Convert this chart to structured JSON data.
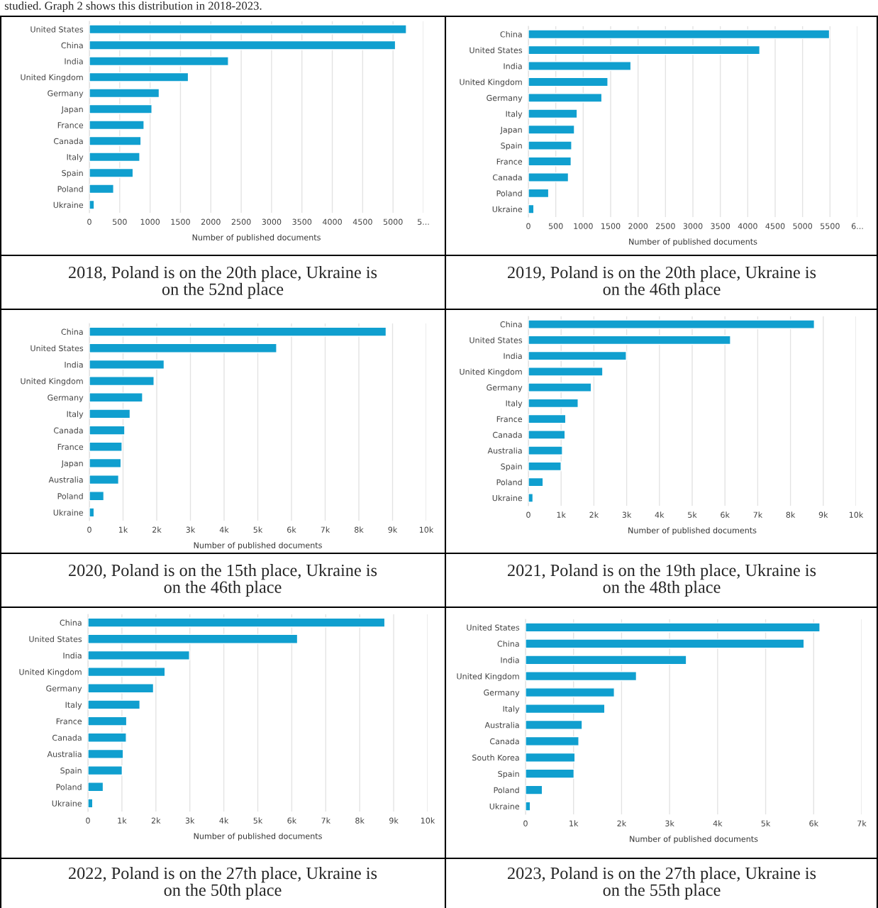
{
  "chart_data": [
    {
      "type": "bar",
      "orientation": "horizontal",
      "title": "studied. Graph 2 shows this distribution in 2018-2023.",
      "xlabel": "Number of published documents",
      "color": "#109fcf",
      "grid": "x",
      "categories": [
        "United States",
        "China",
        "India",
        "United Kingdom",
        "Germany",
        "Japan",
        "France",
        "Canada",
        "Italy",
        "Spain",
        "Poland",
        "Ukraine"
      ],
      "values": [
        5220,
        5040,
        2290,
        1630,
        1150,
        1030,
        900,
        850,
        830,
        720,
        400,
        80
      ],
      "xlim": [
        0,
        5500
      ],
      "xticks": [
        0,
        500,
        1000,
        1500,
        2000,
        2500,
        3000,
        3500,
        4000,
        4500,
        5000,
        {
          "value": 5500,
          "label": "5..."
        }
      ],
      "annotations": [
        "2018, Poland is on the 20th place, Ukraine is\non the 52nd place"
      ]
    },
    {
      "type": "bar",
      "orientation": "horizontal",
      "xlabel": "Number of published documents",
      "color": "#109fcf",
      "grid": "x",
      "categories": [
        "China",
        "United States",
        "India",
        "United Kingdom",
        "Germany",
        "Italy",
        "Japan",
        "Spain",
        "France",
        "Canada",
        "Poland",
        "Ukraine"
      ],
      "values": [
        5490,
        4220,
        1870,
        1450,
        1340,
        890,
        840,
        790,
        780,
        730,
        370,
        100
      ],
      "xlim": [
        0,
        6000
      ],
      "xticks": [
        0,
        500,
        1000,
        1500,
        2000,
        2500,
        3000,
        3500,
        4000,
        4500,
        5000,
        5500,
        {
          "value": 6000,
          "label": "6..."
        }
      ],
      "annotations": [
        "2019, Poland is on the 20th place, Ukraine is\non the 46th place"
      ]
    },
    {
      "type": "bar",
      "orientation": "horizontal",
      "xlabel": "Number of published documents",
      "color": "#109fcf",
      "grid": "x",
      "categories": [
        "China",
        "United States",
        "India",
        "United Kingdom",
        "Germany",
        "Italy",
        "Canada",
        "France",
        "Japan",
        "Australia",
        "Poland",
        "Ukraine"
      ],
      "values": [
        8810,
        5560,
        2220,
        1920,
        1580,
        1210,
        1050,
        970,
        940,
        870,
        430,
        140
      ],
      "xlim": [
        0,
        10000
      ],
      "xticks": [
        0,
        {
          "value": 1000,
          "label": "1k"
        },
        {
          "value": 2000,
          "label": "2k"
        },
        {
          "value": 3000,
          "label": "3k"
        },
        {
          "value": 4000,
          "label": "4k"
        },
        {
          "value": 5000,
          "label": "5k"
        },
        {
          "value": 6000,
          "label": "6k"
        },
        {
          "value": 7000,
          "label": "7k"
        },
        {
          "value": 8000,
          "label": "8k"
        },
        {
          "value": 9000,
          "label": "9k"
        },
        {
          "value": 10000,
          "label": "10k"
        }
      ],
      "annotations": [
        "2020, Poland is on the 15th place, Ukraine is\non the 46th place"
      ]
    },
    {
      "type": "bar",
      "orientation": "horizontal",
      "xlabel": "Number of published documents",
      "color": "#109fcf",
      "grid": "x",
      "categories": [
        "China",
        "United States",
        "India",
        "United Kingdom",
        "Germany",
        "Italy",
        "France",
        "Canada",
        "Australia",
        "Spain",
        "Poland",
        "Ukraine"
      ],
      "values": [
        8730,
        6170,
        2990,
        2270,
        1920,
        1520,
        1140,
        1120,
        1040,
        1000,
        450,
        140
      ],
      "xlim": [
        0,
        10000
      ],
      "xticks": [
        0,
        {
          "value": 1000,
          "label": "1k"
        },
        {
          "value": 2000,
          "label": "2k"
        },
        {
          "value": 3000,
          "label": "3k"
        },
        {
          "value": 4000,
          "label": "4k"
        },
        {
          "value": 5000,
          "label": "5k"
        },
        {
          "value": 6000,
          "label": "6k"
        },
        {
          "value": 7000,
          "label": "7k"
        },
        {
          "value": 8000,
          "label": "8k"
        },
        {
          "value": 9000,
          "label": "9k"
        },
        {
          "value": 10000,
          "label": "10k"
        }
      ],
      "annotations": [
        "2021, Poland is on the 19th place, Ukraine is\non the 48th place"
      ]
    },
    {
      "type": "bar",
      "orientation": "horizontal",
      "xlabel": "Number of published documents",
      "color": "#109fcf",
      "grid": "x",
      "categories": [
        "China",
        "United States",
        "India",
        "United Kingdom",
        "Germany",
        "Italy",
        "France",
        "Canada",
        "Australia",
        "Spain",
        "Poland",
        "Ukraine"
      ],
      "values": [
        8740,
        6170,
        2990,
        2270,
        1930,
        1530,
        1140,
        1130,
        1040,
        1010,
        450,
        140
      ],
      "xlim": [
        0,
        10000
      ],
      "xticks": [
        0,
        {
          "value": 1000,
          "label": "1k"
        },
        {
          "value": 2000,
          "label": "2k"
        },
        {
          "value": 3000,
          "label": "3k"
        },
        {
          "value": 4000,
          "label": "4k"
        },
        {
          "value": 5000,
          "label": "5k"
        },
        {
          "value": 6000,
          "label": "6k"
        },
        {
          "value": 7000,
          "label": "7k"
        },
        {
          "value": 8000,
          "label": "8k"
        },
        {
          "value": 9000,
          "label": "9k"
        },
        {
          "value": 10000,
          "label": "10k"
        }
      ],
      "annotations": [
        "2022, Poland is on the 27th place, Ukraine is\non the 50th place"
      ]
    },
    {
      "type": "bar",
      "orientation": "horizontal",
      "xlabel": "Number of published documents",
      "color": "#109fcf",
      "grid": "x",
      "categories": [
        "United States",
        "China",
        "India",
        "United Kingdom",
        "Germany",
        "Italy",
        "Australia",
        "Canada",
        "South Korea",
        "Spain",
        "Poland",
        "Ukraine"
      ],
      "values": [
        6130,
        5800,
        3350,
        2310,
        1850,
        1650,
        1180,
        1110,
        1030,
        1010,
        350,
        100
      ],
      "xlim": [
        0,
        7000
      ],
      "xticks": [
        0,
        {
          "value": 1000,
          "label": "1k"
        },
        {
          "value": 2000,
          "label": "2k"
        },
        {
          "value": 3000,
          "label": "3k"
        },
        {
          "value": 4000,
          "label": "4k"
        },
        {
          "value": 5000,
          "label": "5k"
        },
        {
          "value": 6000,
          "label": "6k"
        },
        {
          "value": 7000,
          "label": "7k"
        }
      ],
      "annotations": [
        "2023, Poland is on the 27th place, Ukraine is\non the 55th place"
      ]
    }
  ]
}
